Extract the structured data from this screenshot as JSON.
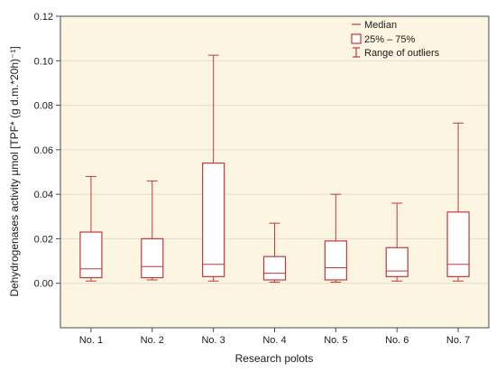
{
  "chart_data": {
    "type": "boxplot",
    "xlabel": "Research polots",
    "ylabel": "Dehydrogenases activity µmol [TPF* (g d.m.*20h)⁻¹]",
    "ylim": [
      -0.02,
      0.12
    ],
    "yticks": [
      0.0,
      0.02,
      0.04,
      0.06,
      0.08,
      0.1,
      0.12
    ],
    "ytick_labels": [
      "0.00",
      "0.02",
      "0.04",
      "0.06",
      "0.08",
      "0.10",
      "0.12"
    ],
    "grid": true,
    "legend_position": "top-right",
    "categories": [
      "No. 1",
      "No. 2",
      "No. 3",
      "No. 4",
      "No. 5",
      "No. 6",
      "No. 7"
    ],
    "boxes": [
      {
        "min": 0.001,
        "q1": 0.0025,
        "median": 0.0065,
        "q3": 0.023,
        "max": 0.048
      },
      {
        "min": 0.0015,
        "q1": 0.0025,
        "median": 0.0075,
        "q3": 0.02,
        "max": 0.046
      },
      {
        "min": 0.001,
        "q1": 0.003,
        "median": 0.0085,
        "q3": 0.054,
        "max": 0.1025
      },
      {
        "min": 0.0005,
        "q1": 0.0015,
        "median": 0.0045,
        "q3": 0.012,
        "max": 0.027
      },
      {
        "min": 0.0005,
        "q1": 0.0015,
        "median": 0.007,
        "q3": 0.019,
        "max": 0.04
      },
      {
        "min": 0.001,
        "q1": 0.003,
        "median": 0.0055,
        "q3": 0.016,
        "max": 0.036
      },
      {
        "min": 0.001,
        "q1": 0.003,
        "median": 0.0085,
        "q3": 0.032,
        "max": 0.072
      }
    ],
    "legend": [
      {
        "kind": "median",
        "label": "Median"
      },
      {
        "kind": "box",
        "label": "25% – 75%"
      },
      {
        "kind": "whisker",
        "label": "Range of outliers"
      }
    ],
    "colors": {
      "box": "#c0393b",
      "plot_background": "#fcf5e2",
      "grid": "#e2dccb",
      "axis": "#4a4a4a"
    }
  }
}
